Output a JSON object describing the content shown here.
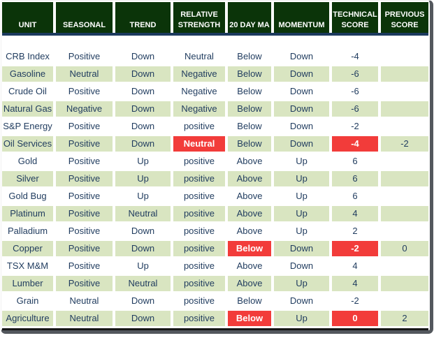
{
  "colors": {
    "header_bg": "#0b3409",
    "header_text": "#ffffff",
    "divider_navy": "#1c3a5e",
    "row_green": "#d9e5c1",
    "row_white": "#ffffff",
    "highlight_red": "#f23c3a",
    "cell_text": "#1f3b5e",
    "bottom_border": "#161616",
    "frame_shadow": "#53575d"
  },
  "chart_data": {
    "type": "table",
    "columns": [
      "UNIT",
      "SEASONAL",
      "TREND",
      "RELATIVE STRENGTH",
      "20 DAY MA",
      "MOMENTUM",
      "TECHNICAL SCORE",
      "PREVIOUS SCORE"
    ],
    "column_keys": [
      "unit",
      "seasonal",
      "trend",
      "relative_strength",
      "ma_20_day",
      "momentum",
      "technical_score",
      "previous_score"
    ],
    "rows": [
      {
        "unit": "CRB Index",
        "seasonal": "Positive",
        "trend": "Down",
        "relative_strength": "Neutral",
        "ma_20_day": "Below",
        "momentum": "Down",
        "technical_score": "-4",
        "previous_score": "",
        "highlight_cells": []
      },
      {
        "unit": "Gasoline",
        "seasonal": "Neutral",
        "trend": "Down",
        "relative_strength": "Negative",
        "ma_20_day": "Below",
        "momentum": "Down",
        "technical_score": "-6",
        "previous_score": "",
        "highlight_cells": []
      },
      {
        "unit": "Crude Oil",
        "seasonal": "Positive",
        "trend": "Down",
        "relative_strength": "Negative",
        "ma_20_day": "Below",
        "momentum": "Down",
        "technical_score": "-6",
        "previous_score": "",
        "highlight_cells": []
      },
      {
        "unit": "Natural Gas",
        "seasonal": "Negative",
        "trend": "Down",
        "relative_strength": "Negative",
        "ma_20_day": "Below",
        "momentum": "Down",
        "technical_score": "-6",
        "previous_score": "",
        "highlight_cells": []
      },
      {
        "unit": "S&P Energy",
        "seasonal": "Positive",
        "trend": "Down",
        "relative_strength": "positive",
        "ma_20_day": "Below",
        "momentum": "Down",
        "technical_score": "-2",
        "previous_score": "",
        "highlight_cells": []
      },
      {
        "unit": "Oil Services",
        "seasonal": "Positive",
        "trend": "Down",
        "relative_strength": "Neutral",
        "ma_20_day": "Below",
        "momentum": "Down",
        "technical_score": "-4",
        "previous_score": "-2",
        "highlight_cells": [
          "relative_strength",
          "technical_score"
        ]
      },
      {
        "unit": "Gold",
        "seasonal": "Positive",
        "trend": "Up",
        "relative_strength": "positive",
        "ma_20_day": "Above",
        "momentum": "Up",
        "technical_score": "6",
        "previous_score": "",
        "highlight_cells": []
      },
      {
        "unit": "Silver",
        "seasonal": "Positive",
        "trend": "Up",
        "relative_strength": "positive",
        "ma_20_day": "Above",
        "momentum": "Up",
        "technical_score": "6",
        "previous_score": "",
        "highlight_cells": []
      },
      {
        "unit": "Gold Bug",
        "seasonal": "Positive",
        "trend": "Up",
        "relative_strength": "positive",
        "ma_20_day": "Above",
        "momentum": "Up",
        "technical_score": "6",
        "previous_score": "",
        "highlight_cells": []
      },
      {
        "unit": "Platinum",
        "seasonal": "Positive",
        "trend": "Neutral",
        "relative_strength": "positive",
        "ma_20_day": "Above",
        "momentum": "Up",
        "technical_score": "4",
        "previous_score": "",
        "highlight_cells": []
      },
      {
        "unit": "Palladium",
        "seasonal": "Positive",
        "trend": "Down",
        "relative_strength": "positive",
        "ma_20_day": "Above",
        "momentum": "Up",
        "technical_score": "2",
        "previous_score": "",
        "highlight_cells": []
      },
      {
        "unit": "Copper",
        "seasonal": "Positive",
        "trend": "Down",
        "relative_strength": "positive",
        "ma_20_day": "Below",
        "momentum": "Down",
        "technical_score": "-2",
        "previous_score": "0",
        "highlight_cells": [
          "ma_20_day",
          "technical_score"
        ]
      },
      {
        "unit": "TSX M&M",
        "seasonal": "Positive",
        "trend": "Up",
        "relative_strength": "positive",
        "ma_20_day": "Above",
        "momentum": "Down",
        "technical_score": "4",
        "previous_score": "",
        "highlight_cells": []
      },
      {
        "unit": "Lumber",
        "seasonal": "Positive",
        "trend": "Neutral",
        "relative_strength": "positive",
        "ma_20_day": "Above",
        "momentum": "Up",
        "technical_score": "4",
        "previous_score": "",
        "highlight_cells": []
      },
      {
        "unit": "Grain",
        "seasonal": "Neutral",
        "trend": "Down",
        "relative_strength": "positive",
        "ma_20_day": "Below",
        "momentum": "Down",
        "technical_score": "-2",
        "previous_score": "",
        "highlight_cells": []
      },
      {
        "unit": "Agriculture",
        "seasonal": "Neutral",
        "trend": "Down",
        "relative_strength": "positive",
        "ma_20_day": "Below",
        "momentum": "Up",
        "technical_score": "0",
        "previous_score": "2",
        "highlight_cells": [
          "ma_20_day",
          "technical_score"
        ]
      }
    ]
  }
}
